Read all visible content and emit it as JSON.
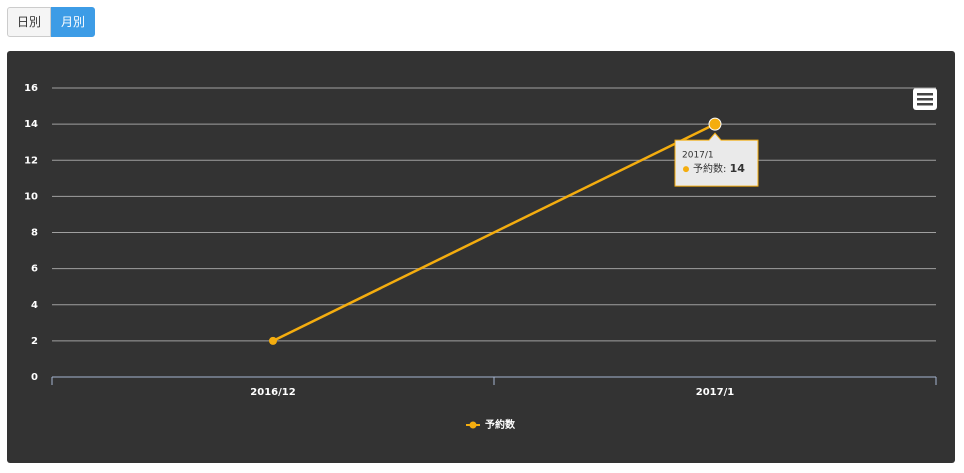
{
  "buttons": [
    "日別",
    "月別"
  ],
  "active_button": 1,
  "chart_data": {
    "type": "line",
    "categories": [
      "2016/12",
      "2017/1"
    ],
    "series": [
      {
        "name": "予約数",
        "color": "#f4ad0f",
        "values": [
          2,
          14
        ]
      }
    ],
    "ylim": [
      0,
      16
    ],
    "yticks": [
      0,
      2,
      4,
      6,
      8,
      10,
      12,
      14,
      16
    ],
    "grid": true,
    "legend": "bottom",
    "highlight": 1
  }
}
